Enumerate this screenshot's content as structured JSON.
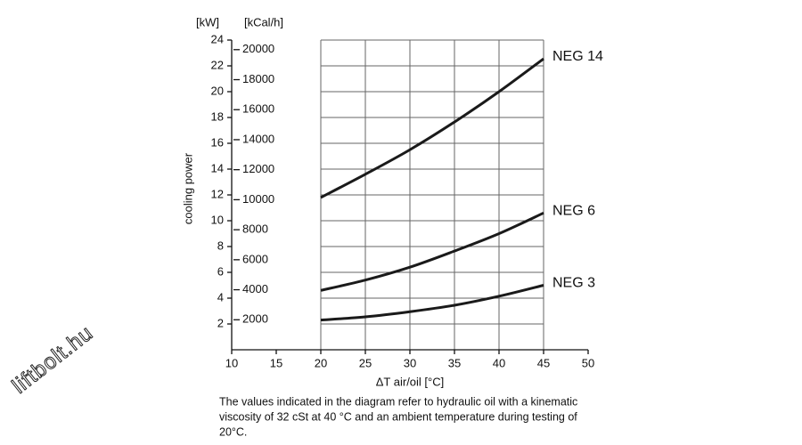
{
  "chart_data": {
    "type": "line",
    "y_unit": "[kW]",
    "y2_unit": "[kCal/h]",
    "ylabel": "cooling power",
    "xlabel": "ΔT air/oil [°C]",
    "x": [
      20,
      25,
      30,
      35,
      40,
      45
    ],
    "series": [
      {
        "name": "NEG 14",
        "color": "#1a1a1a",
        "values": [
          11.8,
          13.6,
          15.5,
          17.65,
          20,
          22.55
        ]
      },
      {
        "name": "NEG 6",
        "color": "#1a1a1a",
        "values": [
          4.6,
          5.4,
          6.4,
          7.65,
          9.0,
          10.6
        ]
      },
      {
        "name": "NEG 3",
        "color": "#1a1a1a",
        "values": [
          2.3,
          2.55,
          2.95,
          3.45,
          4.15,
          5.0
        ]
      }
    ],
    "xlim": [
      10,
      50
    ],
    "xticks": [
      10,
      15,
      20,
      25,
      30,
      35,
      40,
      45,
      50
    ],
    "ylim": [
      0,
      24
    ],
    "yticks": [
      2,
      4,
      6,
      8,
      10,
      12,
      14,
      16,
      18,
      20,
      22,
      24
    ],
    "y2lim": [
      0,
      20640
    ],
    "y2ticks": [
      2000,
      4000,
      6000,
      8000,
      10000,
      12000,
      14000,
      16000,
      18000,
      20000
    ],
    "grid": true,
    "note_lines": [
      "The values indicated in the diagram refer to hydraulic oil with a kinematic",
      "viscosity of 32 cSt at 40 °C and an ambient temperature during testing of",
      "20°C."
    ],
    "watermark": "liftbolt.hu"
  }
}
